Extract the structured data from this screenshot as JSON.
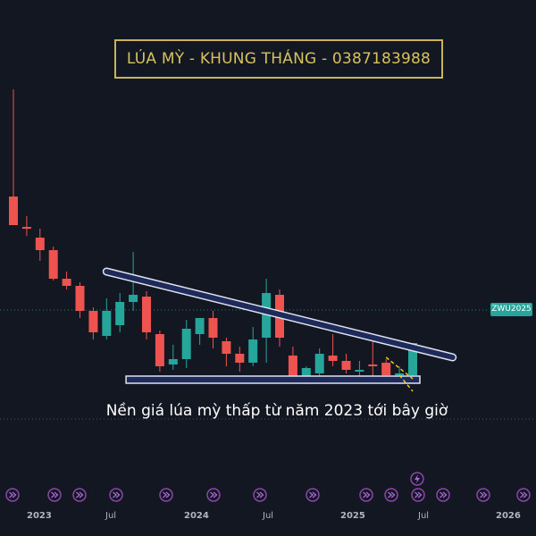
{
  "header": {
    "title": "LÚA MỲ - KHUNG THÁNG - 0387183988"
  },
  "annotation": {
    "text": "Nền giá lúa mỳ thấp từ năm 2023 tới bây giờ"
  },
  "symbol_badge": {
    "label": "ZWU2025",
    "color": "#26a69a"
  },
  "colors": {
    "background": "#131722",
    "up": "#26a69a",
    "down": "#ef5350",
    "title_border": "#c9b458",
    "trendline": "#dfe3ef",
    "event_icon": "#8e44ad"
  },
  "x_axis": {
    "labels": [
      {
        "text": "2023",
        "bold": true
      },
      {
        "text": "Jul",
        "bold": false
      },
      {
        "text": "2024",
        "bold": true
      },
      {
        "text": "Jul",
        "bold": false
      },
      {
        "text": "2025",
        "bold": true
      },
      {
        "text": "Jul",
        "bold": false
      },
      {
        "text": "2026",
        "bold": true
      }
    ]
  },
  "events": {
    "icon": "fast-forward-icon",
    "count": 14,
    "special_icon": "lightning-icon"
  },
  "chart_data": {
    "type": "candlestick",
    "title": "LÚA MỲ - KHUNG THÁNG - 0387183988",
    "symbol": "ZWU2025",
    "timeframe": "monthly",
    "x": [
      "2022-12",
      "2023-01",
      "2023-02",
      "2023-03",
      "2023-04",
      "2023-05",
      "2023-06",
      "2023-07",
      "2023-08",
      "2023-09",
      "2023-10",
      "2023-11",
      "2023-12",
      "2024-01",
      "2024-02",
      "2024-03",
      "2024-04",
      "2024-05",
      "2024-06",
      "2024-07",
      "2024-08",
      "2024-09",
      "2024-10",
      "2024-11",
      "2024-12",
      "2025-01",
      "2025-02",
      "2025-03",
      "2025-04",
      "2025-05",
      "2025-06"
    ],
    "candles": [
      {
        "o": 10.0,
        "h": 16.0,
        "l": 8.4,
        "c": 8.4
      },
      {
        "o": 8.3,
        "h": 8.9,
        "l": 7.8,
        "c": 8.2
      },
      {
        "o": 7.7,
        "h": 8.2,
        "l": 6.4,
        "c": 7.0
      },
      {
        "o": 7.0,
        "h": 7.2,
        "l": 5.3,
        "c": 5.4
      },
      {
        "o": 5.4,
        "h": 5.8,
        "l": 4.8,
        "c": 5.0
      },
      {
        "o": 5.0,
        "h": 5.2,
        "l": 3.2,
        "c": 3.6
      },
      {
        "o": 3.6,
        "h": 3.8,
        "l": 2.0,
        "c": 2.4
      },
      {
        "o": 2.2,
        "h": 4.3,
        "l": 2.0,
        "c": 3.6
      },
      {
        "o": 2.8,
        "h": 4.6,
        "l": 2.4,
        "c": 4.1
      },
      {
        "o": 4.1,
        "h": 6.9,
        "l": 3.6,
        "c": 4.5
      },
      {
        "o": 4.4,
        "h": 4.7,
        "l": 2.0,
        "c": 2.4
      },
      {
        "o": 2.3,
        "h": 2.5,
        "l": 0.2,
        "c": 0.5
      },
      {
        "o": 0.6,
        "h": 1.7,
        "l": 0.3,
        "c": 0.9
      },
      {
        "o": 0.9,
        "h": 3.1,
        "l": 0.4,
        "c": 2.6
      },
      {
        "o": 2.3,
        "h": 3.1,
        "l": 1.7,
        "c": 3.2
      },
      {
        "o": 3.2,
        "h": 3.6,
        "l": 1.5,
        "c": 2.1
      },
      {
        "o": 1.9,
        "h": 2.1,
        "l": 0.5,
        "c": 1.2
      },
      {
        "o": 1.2,
        "h": 1.6,
        "l": 0.2,
        "c": 0.7
      },
      {
        "o": 0.7,
        "h": 2.7,
        "l": 0.5,
        "c": 2.0
      },
      {
        "o": 2.1,
        "h": 5.4,
        "l": 0.7,
        "c": 4.6
      },
      {
        "o": 4.5,
        "h": 4.8,
        "l": 1.6,
        "c": 2.1
      },
      {
        "o": 1.1,
        "h": 1.6,
        "l": -0.4,
        "c": -0.3
      },
      {
        "o": -0.4,
        "h": 0.5,
        "l": -0.5,
        "c": 0.4
      },
      {
        "o": 0.1,
        "h": 1.5,
        "l": -0.1,
        "c": 1.2
      },
      {
        "o": 1.1,
        "h": 2.3,
        "l": 0.5,
        "c": 0.8
      },
      {
        "o": 0.8,
        "h": 1.2,
        "l": 0.1,
        "c": 0.3
      },
      {
        "o": 0.3,
        "h": 0.8,
        "l": -0.2,
        "c": 0.3
      },
      {
        "o": 0.6,
        "h": 2.3,
        "l": -0.3,
        "c": 0.5
      },
      {
        "o": 0.7,
        "h": 0.9,
        "l": -0.3,
        "c": 0.0
      },
      {
        "o": 0.1,
        "h": 0.5,
        "l": -0.5,
        "c": 0.1
      },
      {
        "o": 0.0,
        "h": 1.8,
        "l": -0.3,
        "c": 1.8
      }
    ],
    "trendline": {
      "from": {
        "x": "2023-07",
        "y": 5.8
      },
      "to": {
        "x": "2025-09",
        "y": 1.0
      }
    },
    "support_zone": {
      "x_from": "2023-09",
      "x_to": "2025-06",
      "y_low": -0.45,
      "y_high": -0.05
    },
    "forecast_dashes": [
      {
        "from": {
          "x": "2025-04",
          "y": 1.0
        },
        "to": {
          "x": "2025-06",
          "y": -0.2
        },
        "color": "#f5c518"
      },
      {
        "from": {
          "x": "2025-05",
          "y": 0.0
        },
        "to": {
          "x": "2025-06",
          "y": -0.9
        },
        "color": "#f5c518"
      }
    ],
    "x_tick_labels": [
      "2023",
      "Jul",
      "2024",
      "Jul",
      "2025",
      "Jul",
      "2026"
    ],
    "grid": false
  }
}
